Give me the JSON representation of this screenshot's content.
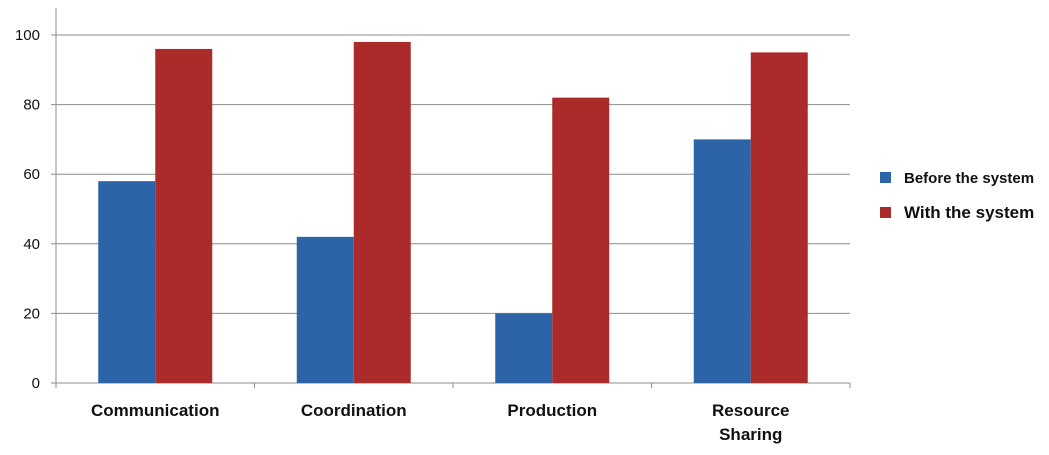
{
  "chart_data": {
    "type": "bar",
    "title": "",
    "xlabel": "",
    "ylabel": "",
    "categories": [
      "Communication",
      "Coordination",
      "Production",
      "Resource Sharing"
    ],
    "category_label_lines": [
      [
        "Communication"
      ],
      [
        "Coordination"
      ],
      [
        "Production"
      ],
      [
        "Resource",
        "Sharing"
      ]
    ],
    "series": [
      {
        "name": "Before the system",
        "color": "#2d64a8",
        "values": [
          58,
          42,
          20,
          70
        ]
      },
      {
        "name": "With the system",
        "color": "#ab2b2a",
        "values": [
          96,
          98,
          82,
          95
        ]
      }
    ],
    "ylim": [
      0,
      100
    ],
    "yticks": [
      0,
      20,
      40,
      60,
      80,
      100
    ],
    "ytick_labels": [
      "0",
      "20",
      "40",
      "60",
      "80",
      "100"
    ],
    "grid": true,
    "legend_position": "right"
  }
}
